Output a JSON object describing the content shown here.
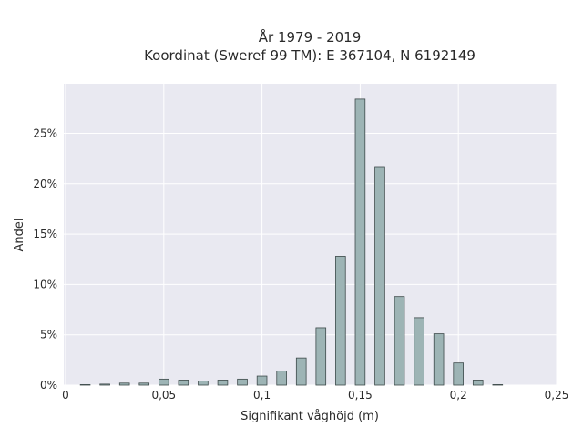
{
  "chart_data": {
    "type": "bar",
    "title_line1": "År 1979 - 2019",
    "title_line2": "Koordinat (Sweref 99 TM): E 367104, N 6192149",
    "xlabel": "Signifikant våghöjd (m)",
    "ylabel": "Andel",
    "xlim": [
      0,
      0.25
    ],
    "ylim": [
      0,
      29.5
    ],
    "xticks": [
      {
        "value": 0,
        "label": "0"
      },
      {
        "value": 0.05,
        "label": "0,05"
      },
      {
        "value": 0.1,
        "label": "0,1"
      },
      {
        "value": 0.15,
        "label": "0,15"
      },
      {
        "value": 0.2,
        "label": "0,2"
      },
      {
        "value": 0.25,
        "label": "0,25"
      }
    ],
    "yticks": [
      {
        "value": 0,
        "label": "0%"
      },
      {
        "value": 5,
        "label": "5%"
      },
      {
        "value": 10,
        "label": "10%"
      },
      {
        "value": 15,
        "label": "15%"
      },
      {
        "value": 20,
        "label": "20%"
      },
      {
        "value": 25,
        "label": "25%"
      }
    ],
    "grid": true,
    "bar_width": 0.005,
    "x": [
      0.01,
      0.02,
      0.03,
      0.04,
      0.05,
      0.06,
      0.07,
      0.08,
      0.09,
      0.1,
      0.11,
      0.12,
      0.13,
      0.14,
      0.15,
      0.16,
      0.17,
      0.18,
      0.19,
      0.2,
      0.21,
      0.22
    ],
    "values": [
      0.05,
      0.1,
      0.2,
      0.2,
      0.6,
      0.5,
      0.4,
      0.5,
      0.6,
      0.9,
      1.4,
      2.7,
      5.7,
      12.8,
      28.4,
      21.7,
      8.8,
      6.7,
      5.1,
      2.2,
      0.5,
      0.05
    ]
  }
}
